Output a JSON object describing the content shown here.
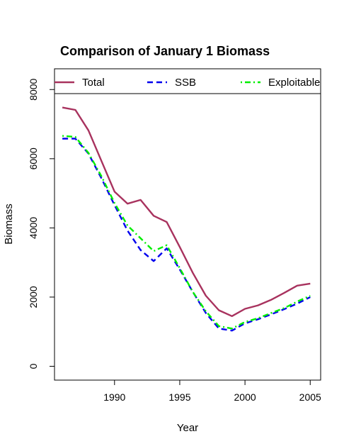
{
  "chart_data": {
    "type": "line",
    "title": "Comparison of January 1 Biomass",
    "xlabel": "Year",
    "ylabel": "Biomass",
    "xlim": [
      1985.4,
      2005.8
    ],
    "ylim": [
      -400,
      8600
    ],
    "xticks": [
      1990,
      1995,
      2000,
      2005
    ],
    "yticks": [
      0,
      2000,
      4000,
      6000,
      8000
    ],
    "legend_position": "top",
    "x": [
      1986,
      1987,
      1988,
      1989,
      1990,
      1991,
      1992,
      1993,
      1994,
      1995,
      1996,
      1997,
      1998,
      1999,
      2000,
      2001,
      2002,
      2003,
      2004,
      2005
    ],
    "series": [
      {
        "name": "Total",
        "color": "#a8325e",
        "dash": "solid",
        "values": [
          7480,
          7410,
          6820,
          5930,
          5050,
          4700,
          4810,
          4350,
          4170,
          3450,
          2700,
          2040,
          1620,
          1450,
          1660,
          1760,
          1920,
          2120,
          2330,
          2390
        ]
      },
      {
        "name": "SSB",
        "color": "#0000ee",
        "dash": "dashed",
        "values": [
          6580,
          6580,
          6150,
          5430,
          4660,
          3920,
          3360,
          3040,
          3410,
          2800,
          2150,
          1540,
          1090,
          1030,
          1240,
          1360,
          1500,
          1650,
          1810,
          2000
        ]
      },
      {
        "name": "Exploitable",
        "color": "#00ee00",
        "dash": "dotdash",
        "values": [
          6660,
          6630,
          6170,
          5490,
          4720,
          4070,
          3700,
          3330,
          3500,
          2840,
          2150,
          1590,
          1160,
          1090,
          1280,
          1390,
          1540,
          1680,
          1870,
          2040
        ]
      }
    ]
  }
}
